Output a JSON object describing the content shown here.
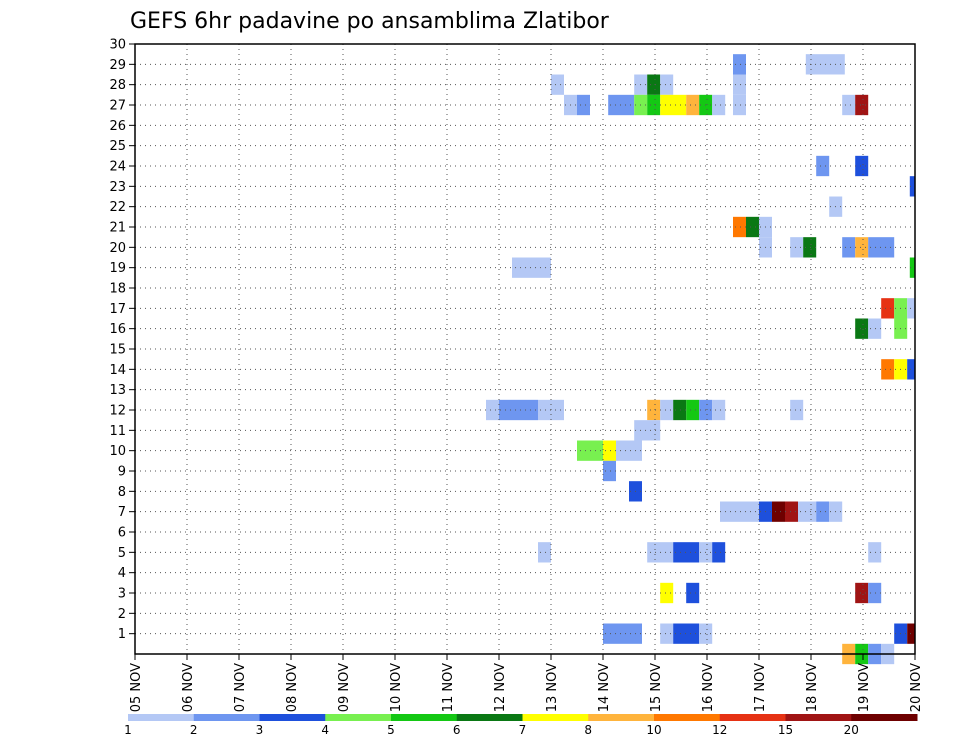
{
  "chart_data": {
    "type": "heatmap",
    "title": "GEFS 6hr padavine po ansamblima Zlatibor",
    "xlabel": "",
    "ylabel": "",
    "x_tick_labels": [
      "05 NOV",
      "06 NOV",
      "07 NOV",
      "08 NOV",
      "09 NOV",
      "10 NOV",
      "11 NOV",
      "12 NOV",
      "13 NOV",
      "14 NOV",
      "15 NOV",
      "16 NOV",
      "17 NOV",
      "18 NOV",
      "19 NOV",
      "20 NOV"
    ],
    "y_tick_labels": [
      "1",
      "2",
      "3",
      "4",
      "5",
      "6",
      "7",
      "8",
      "9",
      "10",
      "11",
      "12",
      "13",
      "14",
      "15",
      "16",
      "17",
      "18",
      "19",
      "20",
      "21",
      "22",
      "23",
      "24",
      "25",
      "26",
      "27",
      "28",
      "29",
      "30"
    ],
    "x_range_days": [
      0,
      15
    ],
    "y_range": [
      0,
      30
    ],
    "grid": true,
    "colorbar_labels": [
      "1",
      "2",
      "3",
      "4",
      "5",
      "6",
      "7",
      "8",
      "10",
      "12",
      "15",
      "20"
    ],
    "colorbar_colors": [
      "#b4c8f5",
      "#6e96f0",
      "#1e50dc",
      "#78f050",
      "#14c814",
      "#0a7814",
      "#ffff00",
      "#ffb43c",
      "#ff7800",
      "#e63214",
      "#a01414",
      "#6e0000"
    ],
    "cells": [
      {
        "m": 29,
        "s": 11.5,
        "e": 11.75,
        "c": 2
      },
      {
        "m": 29,
        "s": 12.9,
        "e": 13.65,
        "c": 1
      },
      {
        "m": 28,
        "s": 8,
        "e": 8.25,
        "c": 1
      },
      {
        "m": 28,
        "s": 9.6,
        "e": 9.85,
        "c": 1
      },
      {
        "m": 28,
        "s": 9.85,
        "e": 10.1,
        "c": 6
      },
      {
        "m": 28,
        "s": 10.1,
        "e": 10.35,
        "c": 1
      },
      {
        "m": 28,
        "s": 11.5,
        "e": 11.75,
        "c": 1
      },
      {
        "m": 27,
        "s": 8.25,
        "e": 8.5,
        "c": 1
      },
      {
        "m": 27,
        "s": 8.5,
        "e": 8.75,
        "c": 2
      },
      {
        "m": 27,
        "s": 9.1,
        "e": 9.6,
        "c": 2
      },
      {
        "m": 27,
        "s": 9.6,
        "e": 9.85,
        "c": 4
      },
      {
        "m": 27,
        "s": 9.85,
        "e": 10.1,
        "c": 5
      },
      {
        "m": 27,
        "s": 10.1,
        "e": 10.6,
        "c": 7
      },
      {
        "m": 27,
        "s": 10.6,
        "e": 10.85,
        "c": 8
      },
      {
        "m": 27,
        "s": 10.85,
        "e": 11.1,
        "c": 5
      },
      {
        "m": 27,
        "s": 11.1,
        "e": 11.35,
        "c": 1
      },
      {
        "m": 27,
        "s": 11.5,
        "e": 11.75,
        "c": 1
      },
      {
        "m": 27,
        "s": 13.6,
        "e": 13.85,
        "c": 1
      },
      {
        "m": 27,
        "s": 13.85,
        "e": 14.1,
        "c": 11
      },
      {
        "m": 24,
        "s": 13.1,
        "e": 13.35,
        "c": 2
      },
      {
        "m": 24,
        "s": 13.85,
        "e": 14.1,
        "c": 3
      },
      {
        "m": 23,
        "s": 14.9,
        "e": 15,
        "c": 3
      },
      {
        "m": 22,
        "s": 13.35,
        "e": 13.6,
        "c": 1
      },
      {
        "m": 21,
        "s": 11.5,
        "e": 11.75,
        "c": 9
      },
      {
        "m": 21,
        "s": 11.75,
        "e": 12,
        "c": 6
      },
      {
        "m": 21,
        "s": 12,
        "e": 12.25,
        "c": 1
      },
      {
        "m": 20,
        "s": 12,
        "e": 12.25,
        "c": 1
      },
      {
        "m": 20,
        "s": 12.6,
        "e": 12.85,
        "c": 1
      },
      {
        "m": 20,
        "s": 12.85,
        "e": 13.1,
        "c": 6
      },
      {
        "m": 20,
        "s": 13.6,
        "e": 13.85,
        "c": 2
      },
      {
        "m": 20,
        "s": 13.85,
        "e": 14.1,
        "c": 8
      },
      {
        "m": 20,
        "s": 14.1,
        "e": 14.6,
        "c": 2
      },
      {
        "m": 19,
        "s": 7.25,
        "e": 8,
        "c": 1
      },
      {
        "m": 19,
        "s": 14.9,
        "e": 15,
        "c": 5
      },
      {
        "m": 17,
        "s": 14.35,
        "e": 14.6,
        "c": 10
      },
      {
        "m": 17,
        "s": 14.6,
        "e": 14.85,
        "c": 4
      },
      {
        "m": 17,
        "s": 14.85,
        "e": 15,
        "c": 1
      },
      {
        "m": 16,
        "s": 13.85,
        "e": 14.1,
        "c": 6
      },
      {
        "m": 16,
        "s": 14.1,
        "e": 14.35,
        "c": 1
      },
      {
        "m": 16,
        "s": 14.6,
        "e": 14.85,
        "c": 4
      },
      {
        "m": 14,
        "s": 14.35,
        "e": 14.6,
        "c": 9
      },
      {
        "m": 14,
        "s": 14.6,
        "e": 14.85,
        "c": 7
      },
      {
        "m": 14,
        "s": 14.85,
        "e": 15,
        "c": 3
      },
      {
        "m": 12,
        "s": 6.75,
        "e": 7,
        "c": 1
      },
      {
        "m": 12,
        "s": 7,
        "e": 7.75,
        "c": 2
      },
      {
        "m": 12,
        "s": 7.75,
        "e": 8.25,
        "c": 1
      },
      {
        "m": 12,
        "s": 9.85,
        "e": 10.1,
        "c": 8
      },
      {
        "m": 12,
        "s": 10.1,
        "e": 10.35,
        "c": 1
      },
      {
        "m": 12,
        "s": 10.35,
        "e": 10.6,
        "c": 6
      },
      {
        "m": 12,
        "s": 10.6,
        "e": 10.85,
        "c": 5
      },
      {
        "m": 12,
        "s": 10.85,
        "e": 11.1,
        "c": 2
      },
      {
        "m": 12,
        "s": 11.1,
        "e": 11.35,
        "c": 1
      },
      {
        "m": 12,
        "s": 12.6,
        "e": 12.85,
        "c": 1
      },
      {
        "m": 11,
        "s": 9.6,
        "e": 10.1,
        "c": 1
      },
      {
        "m": 10,
        "s": 8.5,
        "e": 9,
        "c": 4
      },
      {
        "m": 10,
        "s": 9,
        "e": 9.25,
        "c": 7
      },
      {
        "m": 10,
        "s": 9.25,
        "e": 9.75,
        "c": 1
      },
      {
        "m": 9,
        "s": 9,
        "e": 9.25,
        "c": 2
      },
      {
        "m": 8,
        "s": 9.5,
        "e": 9.75,
        "c": 3
      },
      {
        "m": 7,
        "s": 11.25,
        "e": 12,
        "c": 1
      },
      {
        "m": 7,
        "s": 12,
        "e": 12.25,
        "c": 3
      },
      {
        "m": 7,
        "s": 12.25,
        "e": 12.5,
        "c": 12
      },
      {
        "m": 7,
        "s": 12.5,
        "e": 12.75,
        "c": 11
      },
      {
        "m": 7,
        "s": 12.75,
        "e": 13.1,
        "c": 1
      },
      {
        "m": 7,
        "s": 13.1,
        "e": 13.35,
        "c": 2
      },
      {
        "m": 7,
        "s": 13.35,
        "e": 13.6,
        "c": 1
      },
      {
        "m": 5,
        "s": 7.75,
        "e": 8,
        "c": 1
      },
      {
        "m": 5,
        "s": 9.85,
        "e": 10.35,
        "c": 1
      },
      {
        "m": 5,
        "s": 10.35,
        "e": 10.85,
        "c": 3
      },
      {
        "m": 5,
        "s": 10.85,
        "e": 11.1,
        "c": 1
      },
      {
        "m": 5,
        "s": 11.1,
        "e": 11.35,
        "c": 3
      },
      {
        "m": 5,
        "s": 14.1,
        "e": 14.35,
        "c": 1
      },
      {
        "m": 3,
        "s": 10.1,
        "e": 10.35,
        "c": 7
      },
      {
        "m": 3,
        "s": 10.6,
        "e": 10.85,
        "c": 3
      },
      {
        "m": 3,
        "s": 13.85,
        "e": 14.1,
        "c": 11
      },
      {
        "m": 3,
        "s": 14.1,
        "e": 14.35,
        "c": 2
      },
      {
        "m": 1,
        "s": 9,
        "e": 9.75,
        "c": 2
      },
      {
        "m": 1,
        "s": 10.1,
        "e": 10.35,
        "c": 1
      },
      {
        "m": 1,
        "s": 10.35,
        "e": 10.85,
        "c": 3
      },
      {
        "m": 1,
        "s": 10.85,
        "e": 11.1,
        "c": 1
      },
      {
        "m": 1,
        "s": 14.6,
        "e": 14.85,
        "c": 3
      },
      {
        "m": 1,
        "s": 14.85,
        "e": 15,
        "c": 12
      },
      {
        "m": 0,
        "s": 13.6,
        "e": 13.85,
        "c": 8
      },
      {
        "m": 0,
        "s": 13.85,
        "e": 14.1,
        "c": 5
      },
      {
        "m": 0,
        "s": 14.1,
        "e": 14.35,
        "c": 2
      },
      {
        "m": 0,
        "s": 14.35,
        "e": 14.6,
        "c": 1
      }
    ]
  }
}
